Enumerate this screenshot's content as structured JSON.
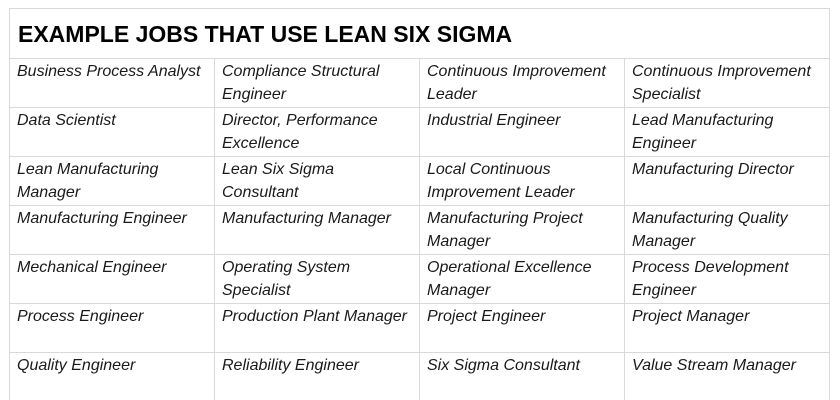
{
  "title": "EXAMPLE JOBS THAT USE LEAN SIX SIGMA",
  "colors": {
    "background": "#ffffff",
    "outer_border": "#a6a6a6",
    "grid_line": "#d9d9d9",
    "title_text": "#000000",
    "cell_text": "#1a1a1a"
  },
  "table": {
    "columns": 4,
    "rows": [
      [
        "Business Process Analyst",
        "Compliance Structural Engineer",
        "Continuous Improvement Leader",
        "Continuous Improvement Specialist"
      ],
      [
        "Data Scientist",
        "Director, Performance Excellence",
        "Industrial Engineer",
        "Lead Manufacturing Engineer"
      ],
      [
        "Lean Manufacturing Manager",
        "Lean Six Sigma Consultant",
        "Local Continuous Improvement Leader",
        "Manufacturing Director"
      ],
      [
        "Manufacturing Engineer",
        "Manufacturing Manager",
        "Manufacturing Project Manager",
        "Manufacturing Quality Manager"
      ],
      [
        "Mechanical Engineer",
        "Operating System Specialist",
        "Operational Excellence Manager",
        "Process Development Engineer"
      ],
      [
        "Process Engineer",
        "Production Plant Manager",
        "Project Engineer",
        "Project Manager"
      ],
      [
        "Quality Engineer",
        "Reliability Engineer",
        "Six Sigma Consultant",
        "Value Stream Manager"
      ]
    ]
  }
}
